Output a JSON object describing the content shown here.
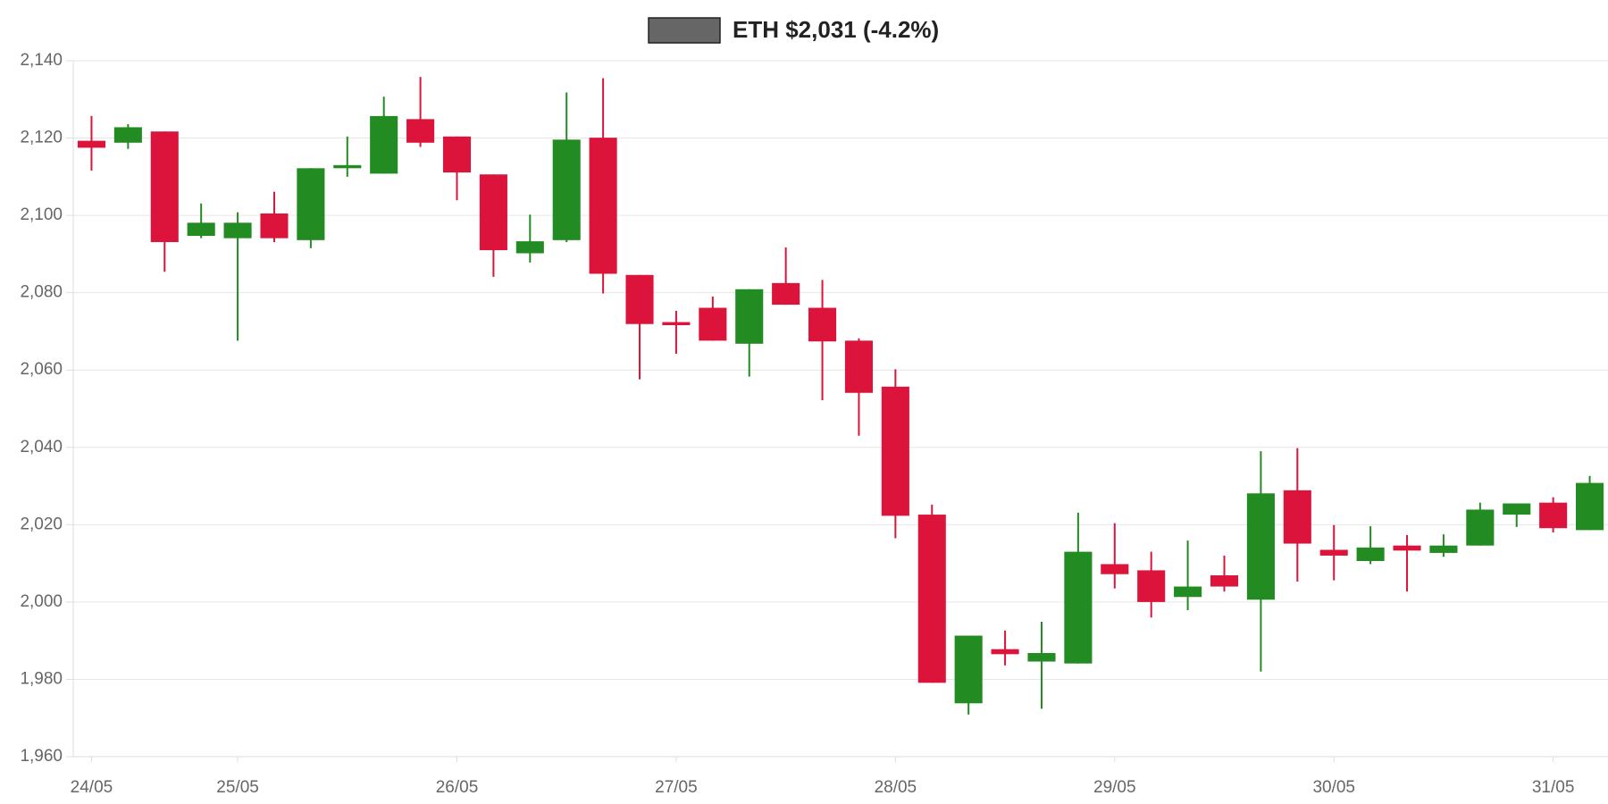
{
  "chart_data": {
    "type": "candlestick",
    "categories": [
      "24/05",
      null,
      null,
      null,
      "25/05",
      null,
      null,
      null,
      null,
      null,
      "26/05",
      null,
      null,
      null,
      null,
      null,
      "27/05",
      null,
      null,
      null,
      null,
      null,
      "28/05",
      null,
      null,
      null,
      null,
      null,
      "29/05",
      null,
      null,
      null,
      null,
      null,
      "30/05",
      null,
      null,
      null,
      null,
      null,
      "31/05",
      null
    ],
    "series": [
      {
        "name": "ETH $2,031 (-4.2%)",
        "color": "#666666",
        "up_color": "#228b22",
        "down_color": "#dc143c",
        "open": [
          2119.3,
          2118.8,
          2121.7,
          2094.7,
          2094.1,
          2100.5,
          2093.6,
          2112.2,
          2110.8,
          2124.9,
          2120.4,
          2110.6,
          2090.2,
          2093.6,
          2120.1,
          2084.6,
          2072.4,
          2076.1,
          2066.8,
          2082.5,
          2076.1,
          2067.6,
          2055.7,
          2022.6,
          1973.8,
          1987.8,
          1984.6,
          1984.1,
          2009.8,
          2008.2,
          2001.3,
          2006.9,
          2000.6,
          2028.9,
          2013.5,
          2010.6,
          2014.6,
          2012.7,
          2014.6,
          2022.6,
          2025.7,
          2018.6
        ],
        "high": [
          2125.7,
          2123.6,
          2121.7,
          2103.1,
          2100.8,
          2106.1,
          2112.2,
          2120.4,
          2130.7,
          2135.8,
          2120.4,
          2110.6,
          2100.2,
          2131.8,
          2135.5,
          2084.6,
          2075.3,
          2079.0,
          2080.9,
          2091.7,
          2083.3,
          2068.2,
          2060.2,
          2025.2,
          1991.3,
          1992.6,
          1994.9,
          2023.1,
          2020.4,
          2013.0,
          2015.9,
          2012.0,
          2039.0,
          2039.8,
          2019.9,
          2019.6,
          2017.3,
          2017.5,
          2025.7,
          2025.5,
          2027.1,
          2032.6
        ],
        "low": [
          2111.6,
          2117.2,
          2085.4,
          2094.1,
          2067.6,
          2093.1,
          2091.5,
          2110.0,
          2110.8,
          2117.7,
          2103.9,
          2084.1,
          2087.8,
          2093.1,
          2079.8,
          2057.6,
          2064.2,
          2067.6,
          2058.3,
          2076.9,
          2052.2,
          2043.0,
          2016.5,
          1979.1,
          1970.9,
          1983.6,
          1972.4,
          1984.1,
          2003.5,
          1996.0,
          1997.9,
          2002.7,
          1982.0,
          2005.3,
          2005.6,
          2009.8,
          2002.7,
          2011.7,
          2014.6,
          2019.4,
          2018.0,
          2018.6
        ],
        "close": [
          2117.5,
          2122.8,
          2093.1,
          2098.1,
          2098.1,
          2094.1,
          2112.2,
          2113.0,
          2125.7,
          2118.8,
          2111.1,
          2091.0,
          2093.3,
          2119.6,
          2084.9,
          2071.9,
          2071.6,
          2067.6,
          2080.9,
          2076.9,
          2067.4,
          2054.1,
          2022.3,
          1979.1,
          1991.3,
          1986.5,
          1986.8,
          2013.0,
          2007.2,
          2000.0,
          2004.0,
          2004.0,
          2028.1,
          2015.1,
          2012.0,
          2014.1,
          2013.3,
          2014.6,
          2023.9,
          2025.5,
          2019.1,
          2030.8
        ]
      }
    ],
    "ylim": [
      1960,
      2140
    ],
    "yticks": [
      {
        "value": 1960,
        "label": "1,960"
      },
      {
        "value": 1980,
        "label": "1,980"
      },
      {
        "value": 2000,
        "label": "2,000"
      },
      {
        "value": 2020,
        "label": "2,020"
      },
      {
        "value": 2040,
        "label": "2,040"
      },
      {
        "value": 2060,
        "label": "2,060"
      },
      {
        "value": 2080,
        "label": "2,080"
      },
      {
        "value": 2100,
        "label": "2,100"
      },
      {
        "value": 2120,
        "label": "2,120"
      },
      {
        "value": 2140,
        "label": "2,140"
      }
    ],
    "grid": true
  }
}
